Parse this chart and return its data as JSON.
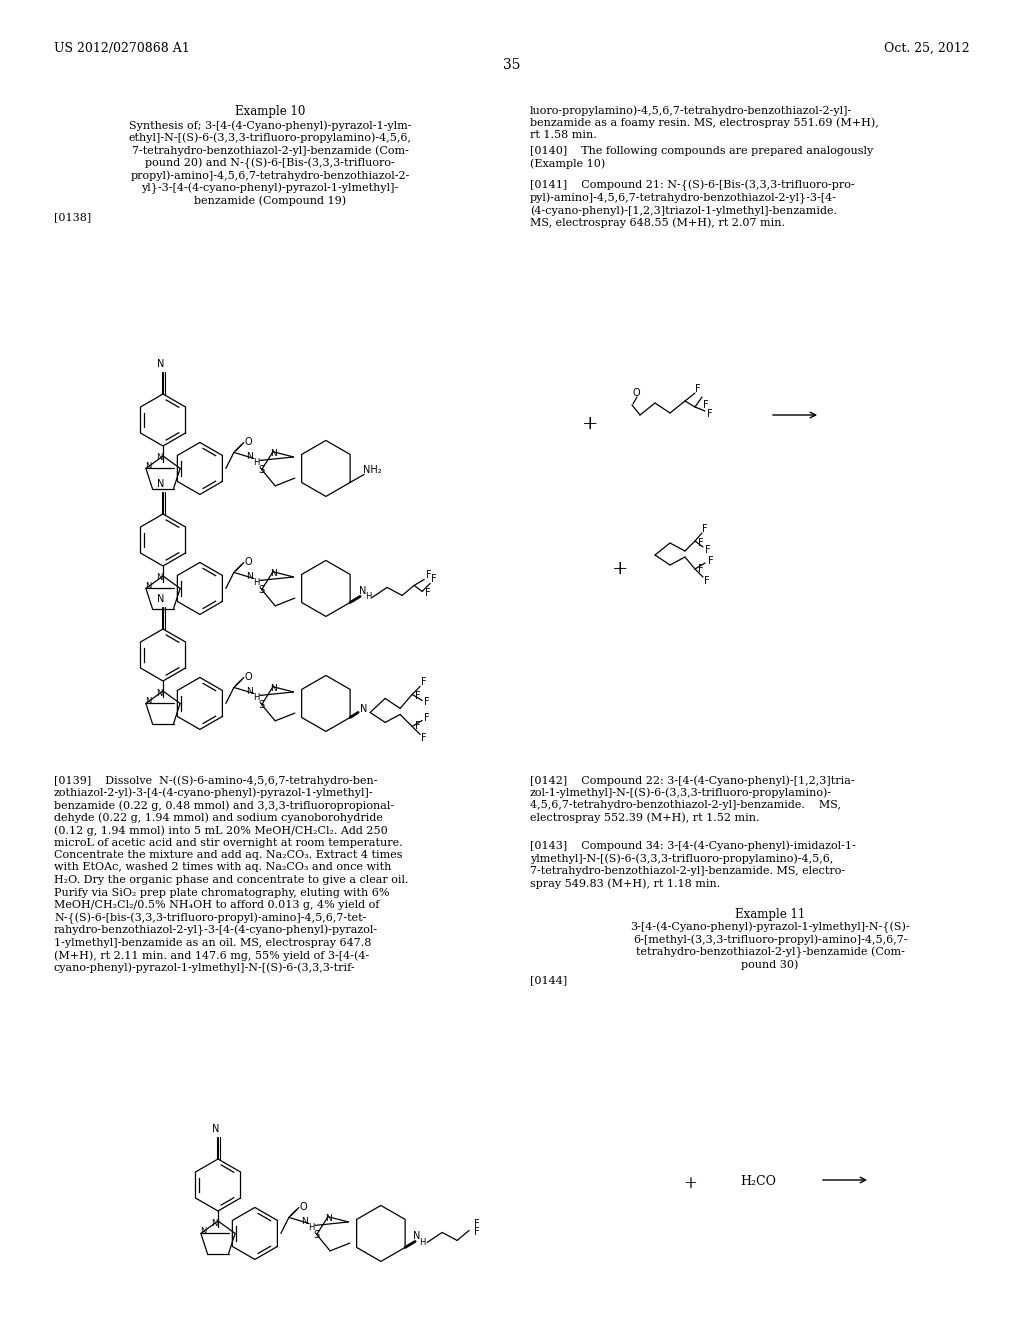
{
  "page_header_left": "US 2012/0270868 A1",
  "page_header_right": "Oct. 25, 2012",
  "page_number": "35",
  "background_color": "#ffffff",
  "text_color": "#000000",
  "figsize": [
    10.24,
    13.2
  ],
  "dpi": 100
}
